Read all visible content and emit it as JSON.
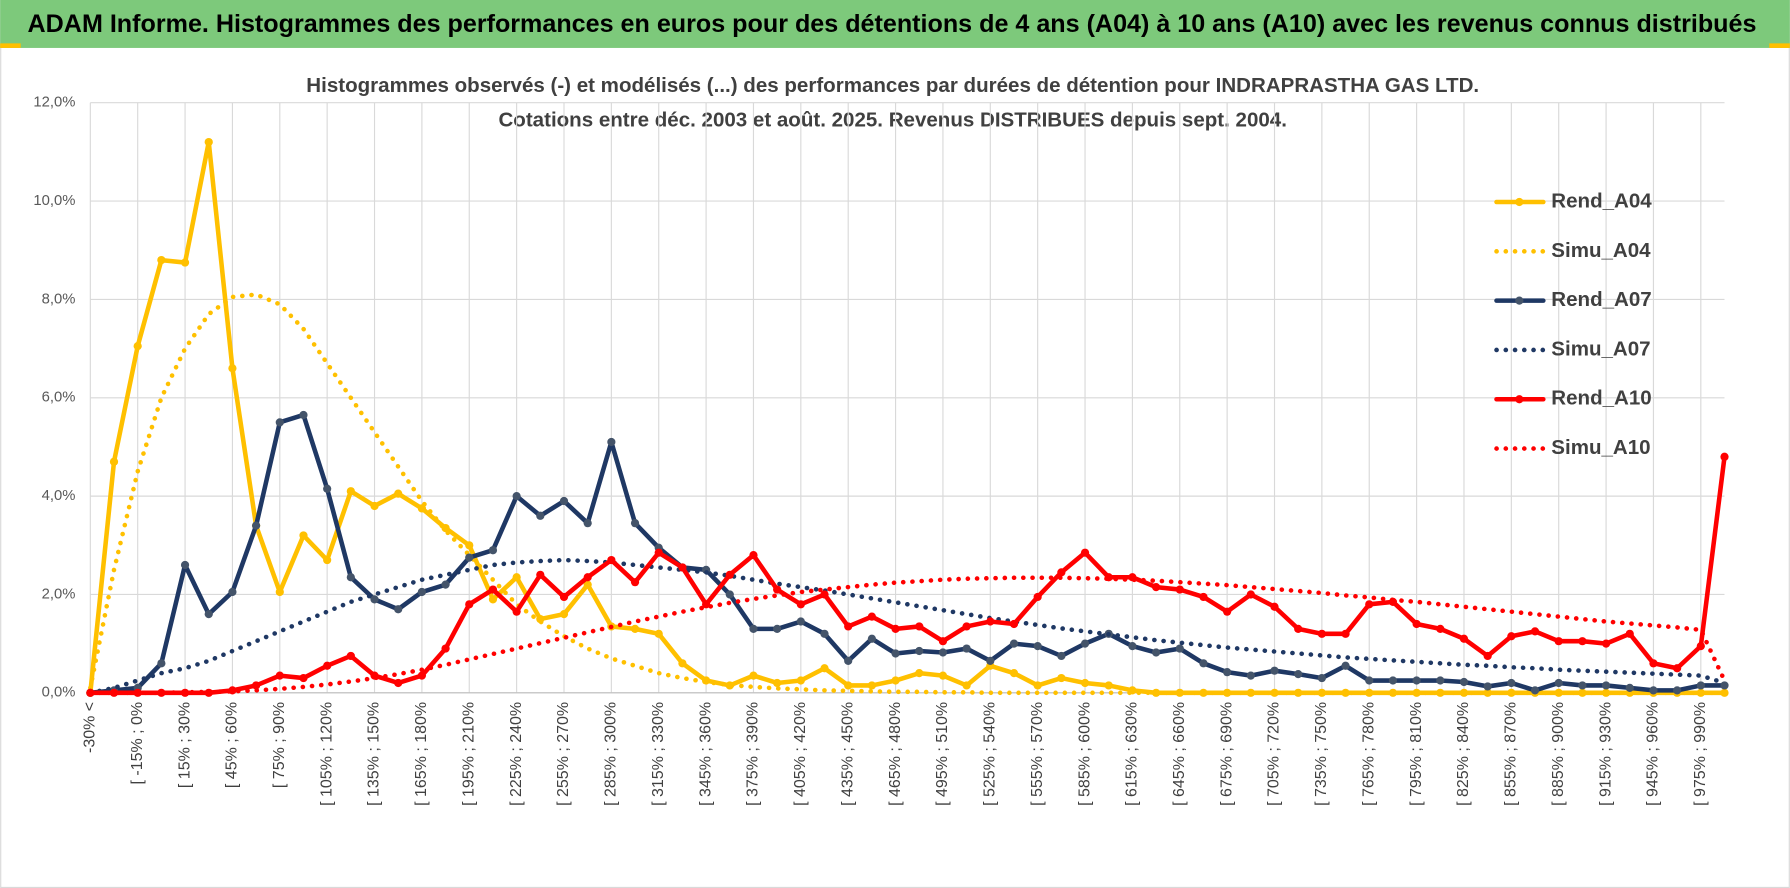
{
  "header": {
    "title": "ADAM Informe. Histogrammes des performances en euros pour des détentions de 4 ans (A04) à 10 ans (A10) avec les revenus connus distribués"
  },
  "chart_data": {
    "type": "line",
    "title": "Histogrammes observés (-) et modélisés (...) des performances par durées de détention pour INDRAPRASTHA GAS LTD.",
    "subtitle": "Cotations entre déc. 2003 et août. 2025. Revenus DISTRIBUES depuis sept. 2004.",
    "categories": [
      "-30% <",
      null,
      "[ -15% ; 0%",
      null,
      "[ 15% ; 30%",
      null,
      "[ 45% ; 60%",
      null,
      "[ 75% ; 90%",
      null,
      "[ 105% ; 120%",
      null,
      "[ 135% ; 150%",
      null,
      "[ 165% ; 180%",
      null,
      "[ 195% ; 210%",
      null,
      "[ 225% ; 240%",
      null,
      "[ 255% ; 270%",
      null,
      "[ 285% ; 300%",
      null,
      "[ 315% ; 330%",
      null,
      "[ 345% ; 360%",
      null,
      "[ 375% ; 390%",
      null,
      "[ 405% ; 420%",
      null,
      "[ 435% ; 450%",
      null,
      "[ 465% ; 480%",
      null,
      "[ 495% ; 510%",
      null,
      "[ 525% ; 540%",
      null,
      "[ 555% ; 570%",
      null,
      "[ 585% ; 600%",
      null,
      "[ 615% ; 630%",
      null,
      "[ 645% ; 660%",
      null,
      "[ 675% ; 690%",
      null,
      "[ 705% ; 720%",
      null,
      "[ 735% ; 750%",
      null,
      "[ 765% ; 780%",
      null,
      "[ 795% ; 810%",
      null,
      "[ 825% ; 840%",
      null,
      "[ 855% ; 870%",
      null,
      "[ 885% ; 900%",
      null,
      "[ 915% ; 930%",
      null,
      "[ 945% ; 960%",
      null,
      "[ 975% ; 990%",
      null
    ],
    "ylim": [
      0,
      12
    ],
    "yticks": [
      {
        "value": 0,
        "label": "0,0%"
      },
      {
        "value": 2,
        "label": "2,0%"
      },
      {
        "value": 4,
        "label": "4,0%"
      },
      {
        "value": 6,
        "label": "6,0%"
      },
      {
        "value": 8,
        "label": "8,0%"
      },
      {
        "value": 10,
        "label": "10,0%"
      },
      {
        "value": 12,
        "label": "12,0%"
      }
    ],
    "grid": true,
    "legend": "right",
    "series": [
      {
        "name": "Rend_A04",
        "color": "#FFC000",
        "style": "solid",
        "markers": true,
        "values": [
          0,
          4.7,
          7.05,
          8.8,
          8.75,
          11.2,
          6.6,
          3.4,
          2.05,
          3.2,
          2.7,
          4.1,
          3.8,
          4.05,
          3.75,
          3.35,
          3.0,
          1.9,
          2.35,
          1.5,
          1.6,
          2.2,
          1.35,
          1.3,
          1.2,
          0.6,
          0.25,
          0.15,
          0.35,
          0.2,
          0.25,
          0.5,
          0.15,
          0.15,
          0.25,
          0.4,
          0.35,
          0.15,
          0.55,
          0.4,
          0.15,
          0.3,
          0.2,
          0.15,
          0.05,
          0,
          0,
          0,
          0,
          0,
          0,
          0,
          0,
          0,
          0,
          0,
          0,
          0,
          0,
          0,
          0,
          0,
          0,
          0,
          0,
          0,
          0,
          0,
          0,
          0
        ]
      },
      {
        "name": "Simu_A04",
        "color": "#FFC000",
        "style": "dotted",
        "markers": false,
        "values": [
          0.1,
          2.5,
          4.5,
          6.0,
          7.0,
          7.7,
          8.05,
          8.1,
          7.9,
          7.4,
          6.7,
          6.0,
          5.3,
          4.6,
          3.9,
          3.3,
          2.8,
          2.3,
          1.8,
          1.45,
          1.15,
          0.9,
          0.7,
          0.55,
          0.4,
          0.3,
          0.22,
          0.16,
          0.12,
          0.09,
          0.07,
          0.05,
          0.04,
          0.03,
          0.02,
          0.02,
          0.01,
          0.01,
          0,
          0,
          0,
          0,
          0,
          0,
          0,
          0,
          0,
          0,
          0,
          0,
          0,
          0,
          0,
          0,
          0,
          0,
          0,
          0,
          0,
          0,
          0,
          0,
          0,
          0,
          0,
          0,
          0,
          0,
          0,
          0
        ]
      },
      {
        "name": "Rend_A07",
        "color": "#1F3864",
        "marker_color": "#44546A",
        "style": "solid",
        "markers": true,
        "values": [
          0,
          0.05,
          0.1,
          0.6,
          2.6,
          1.6,
          2.05,
          3.4,
          5.5,
          5.65,
          4.15,
          2.35,
          1.9,
          1.7,
          2.05,
          2.2,
          2.75,
          2.9,
          4.0,
          3.6,
          3.9,
          3.45,
          5.1,
          3.45,
          2.95,
          2.55,
          2.5,
          2.0,
          1.3,
          1.3,
          1.45,
          1.2,
          0.65,
          1.1,
          0.8,
          0.85,
          0.82,
          0.9,
          0.65,
          1.0,
          0.95,
          0.75,
          1.0,
          1.2,
          0.95,
          0.82,
          0.9,
          0.6,
          0.42,
          0.35,
          0.45,
          0.38,
          0.3,
          0.55,
          0.25,
          0.25,
          0.25,
          0.25,
          0.22,
          0.13,
          0.2,
          0.05,
          0.2,
          0.15,
          0.15,
          0.1,
          0.05,
          0.05,
          0.15,
          0.15
        ]
      },
      {
        "name": "Simu_A07",
        "color": "#1F3864",
        "style": "dotted",
        "markers": false,
        "values": [
          0,
          0.1,
          0.25,
          0.4,
          0.5,
          0.65,
          0.85,
          1.05,
          1.25,
          1.45,
          1.65,
          1.85,
          2.0,
          2.15,
          2.3,
          2.4,
          2.5,
          2.6,
          2.65,
          2.68,
          2.7,
          2.68,
          2.65,
          2.6,
          2.55,
          2.5,
          2.45,
          2.38,
          2.3,
          2.22,
          2.15,
          2.08,
          2.0,
          1.92,
          1.84,
          1.76,
          1.68,
          1.6,
          1.52,
          1.45,
          1.38,
          1.31,
          1.25,
          1.19,
          1.13,
          1.07,
          1.02,
          0.97,
          0.92,
          0.88,
          0.84,
          0.8,
          0.76,
          0.72,
          0.69,
          0.66,
          0.63,
          0.6,
          0.57,
          0.55,
          0.52,
          0.5,
          0.47,
          0.45,
          0.43,
          0.41,
          0.39,
          0.37,
          0.35,
          0.2
        ]
      },
      {
        "name": "Rend_A10",
        "color": "#FF0000",
        "style": "solid",
        "markers": true,
        "values": [
          0,
          0,
          0,
          0,
          0,
          0,
          0.05,
          0.15,
          0.35,
          0.3,
          0.55,
          0.75,
          0.35,
          0.2,
          0.35,
          0.9,
          1.8,
          2.1,
          1.65,
          2.4,
          1.95,
          2.35,
          2.7,
          2.25,
          2.85,
          2.55,
          1.8,
          2.4,
          2.8,
          2.1,
          1.8,
          2.0,
          1.35,
          1.55,
          1.3,
          1.35,
          1.05,
          1.35,
          1.45,
          1.4,
          1.95,
          2.45,
          2.85,
          2.35,
          2.35,
          2.15,
          2.1,
          1.95,
          1.65,
          2.0,
          1.75,
          1.3,
          1.2,
          1.2,
          1.8,
          1.85,
          1.4,
          1.3,
          1.1,
          0.75,
          1.15,
          1.25,
          1.05,
          1.05,
          1.0,
          1.2,
          0.6,
          0.5,
          0.95,
          4.8
        ]
      },
      {
        "name": "Simu_A10",
        "color": "#FF0000",
        "style": "dotted",
        "markers": false,
        "values": [
          0,
          0,
          0,
          0,
          0.01,
          0.02,
          0.03,
          0.05,
          0.08,
          0.12,
          0.17,
          0.23,
          0.3,
          0.38,
          0.47,
          0.57,
          0.68,
          0.79,
          0.9,
          1.01,
          1.12,
          1.23,
          1.34,
          1.45,
          1.55,
          1.65,
          1.74,
          1.83,
          1.91,
          1.98,
          2.05,
          2.1,
          2.15,
          2.2,
          2.24,
          2.27,
          2.3,
          2.32,
          2.33,
          2.34,
          2.34,
          2.34,
          2.33,
          2.32,
          2.3,
          2.28,
          2.25,
          2.22,
          2.19,
          2.15,
          2.11,
          2.07,
          2.03,
          1.98,
          1.94,
          1.89,
          1.85,
          1.8,
          1.75,
          1.7,
          1.65,
          1.6,
          1.55,
          1.5,
          1.45,
          1.41,
          1.37,
          1.33,
          1.28,
          0.25
        ]
      }
    ]
  }
}
